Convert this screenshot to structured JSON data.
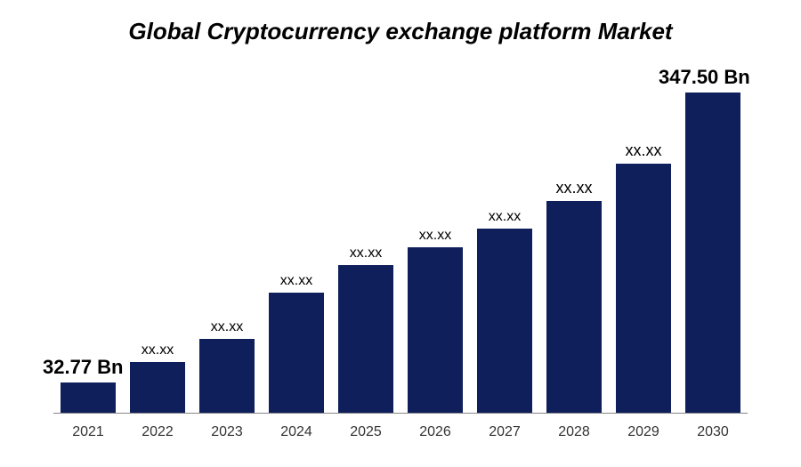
{
  "chart": {
    "type": "bar",
    "title": "Global Cryptocurrency exchange platform Market",
    "title_fontsize": 26,
    "title_fontweight": 700,
    "title_fontstyle": "italic",
    "title_color": "#000000",
    "background_color": "#ffffff",
    "bar_color": "#0e1f5b",
    "axis_line_color": "#888888",
    "first_label": "32.77 Bn",
    "last_label": "347.50 Bn",
    "corner_label_fontsize": 22,
    "corner_label_fontweight": 700,
    "bar_label_fontsize": 16,
    "box_label_fontsize": 18,
    "xaxis_fontsize": 16,
    "categories": [
      "2021",
      "2022",
      "2023",
      "2024",
      "2025",
      "2026",
      "2027",
      "2028",
      "2029",
      "2030"
    ],
    "values": [
      32.77,
      55,
      80,
      130,
      160,
      180,
      200,
      230,
      270,
      347.5
    ],
    "ylim_max": 360,
    "bar_labels": [
      "",
      "xx.xx",
      "xx.xx",
      "xx.xx",
      "xx.xx",
      "xx.xx",
      "xx.xx",
      "xx.xx",
      "xx.xx",
      ""
    ],
    "bar_label_box": [
      false,
      false,
      false,
      false,
      false,
      false,
      false,
      true,
      true,
      false
    ]
  }
}
